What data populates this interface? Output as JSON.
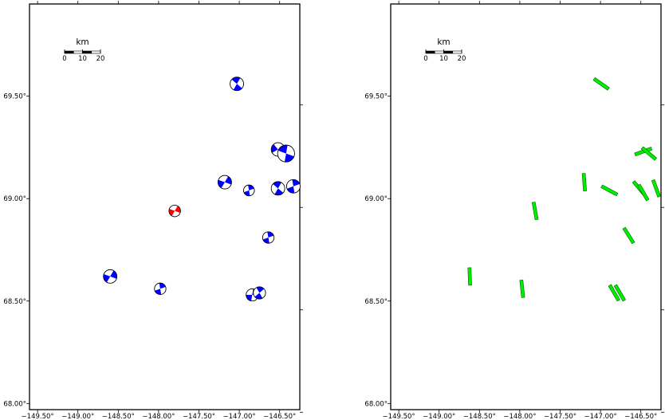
{
  "colors": {
    "frame": "#000000",
    "beachball_compressional": "#0000ff",
    "beachball_highlight": "#ff0000",
    "beachball_dilatational": "#ffffff",
    "bar_fill": "#00ee00",
    "bar_stroke": "#006600"
  },
  "axes": {
    "lon_range": [
      -149.6,
      -146.25
    ],
    "lat_range": [
      67.97,
      69.95
    ],
    "x_tick_labels": [
      "−149.50°",
      "−149.00°",
      "−148.50°",
      "−148.00°",
      "−147.50°",
      "−147.00°",
      "−146.50°"
    ],
    "x_tick_values": [
      -149.5,
      -149.0,
      -148.5,
      -148.0,
      -147.5,
      -147.0,
      -146.5
    ],
    "y_tick_labels": [
      "68.00°",
      "68.50°",
      "69.00°",
      "69.50°"
    ],
    "y_tick_values": [
      68.0,
      68.5,
      69.0,
      69.5
    ]
  },
  "scalebar": {
    "unit_label": "km",
    "tick_labels": [
      "0",
      "10",
      "20"
    ]
  },
  "left_panel": {
    "name": "focal-mechanism-map",
    "events": [
      {
        "lon": -147.03,
        "lat": 69.56,
        "rot": 40,
        "size": 1.0,
        "highlight": false
      },
      {
        "lon": -146.52,
        "lat": 69.24,
        "rot": 330,
        "size": 1.0,
        "highlight": false
      },
      {
        "lon": -146.42,
        "lat": 69.22,
        "rot": 20,
        "size": 1.25,
        "highlight": false
      },
      {
        "lon": -147.18,
        "lat": 69.08,
        "rot": 300,
        "size": 1.0,
        "highlight": false
      },
      {
        "lon": -146.88,
        "lat": 69.04,
        "rot": 80,
        "size": 0.8,
        "highlight": false
      },
      {
        "lon": -146.52,
        "lat": 69.05,
        "rot": 40,
        "size": 1.0,
        "highlight": false
      },
      {
        "lon": -146.33,
        "lat": 69.06,
        "rot": 80,
        "size": 1.0,
        "highlight": false
      },
      {
        "lon": -147.8,
        "lat": 68.94,
        "rot": 300,
        "size": 0.85,
        "highlight": true
      },
      {
        "lon": -146.64,
        "lat": 68.81,
        "rot": 80,
        "size": 0.85,
        "highlight": false
      },
      {
        "lon": -148.6,
        "lat": 68.62,
        "rot": 300,
        "size": 1.0,
        "highlight": false
      },
      {
        "lon": -147.98,
        "lat": 68.56,
        "rot": 80,
        "size": 0.85,
        "highlight": false
      },
      {
        "lon": -146.84,
        "lat": 68.53,
        "rot": 100,
        "size": 0.9,
        "highlight": false
      },
      {
        "lon": -146.75,
        "lat": 68.54,
        "rot": 60,
        "size": 0.9,
        "highlight": false
      }
    ]
  },
  "right_panel": {
    "name": "strike-orientation-map",
    "bars": [
      {
        "lon": -146.99,
        "lat": 69.56,
        "az": 125
      },
      {
        "lon": -146.47,
        "lat": 69.23,
        "az": 70
      },
      {
        "lon": -146.4,
        "lat": 69.22,
        "az": 130
      },
      {
        "lon": -147.2,
        "lat": 69.08,
        "az": 176
      },
      {
        "lon": -146.89,
        "lat": 69.04,
        "az": 118
      },
      {
        "lon": -146.52,
        "lat": 69.05,
        "az": 140
      },
      {
        "lon": -146.47,
        "lat": 69.03,
        "az": 150
      },
      {
        "lon": -146.31,
        "lat": 69.05,
        "az": 160
      },
      {
        "lon": -147.81,
        "lat": 68.94,
        "az": 170
      },
      {
        "lon": -146.65,
        "lat": 68.82,
        "az": 148
      },
      {
        "lon": -148.62,
        "lat": 68.62,
        "az": 178
      },
      {
        "lon": -147.97,
        "lat": 68.56,
        "az": 174
      },
      {
        "lon": -146.83,
        "lat": 68.54,
        "az": 150
      },
      {
        "lon": -146.76,
        "lat": 68.54,
        "az": 150
      }
    ]
  }
}
